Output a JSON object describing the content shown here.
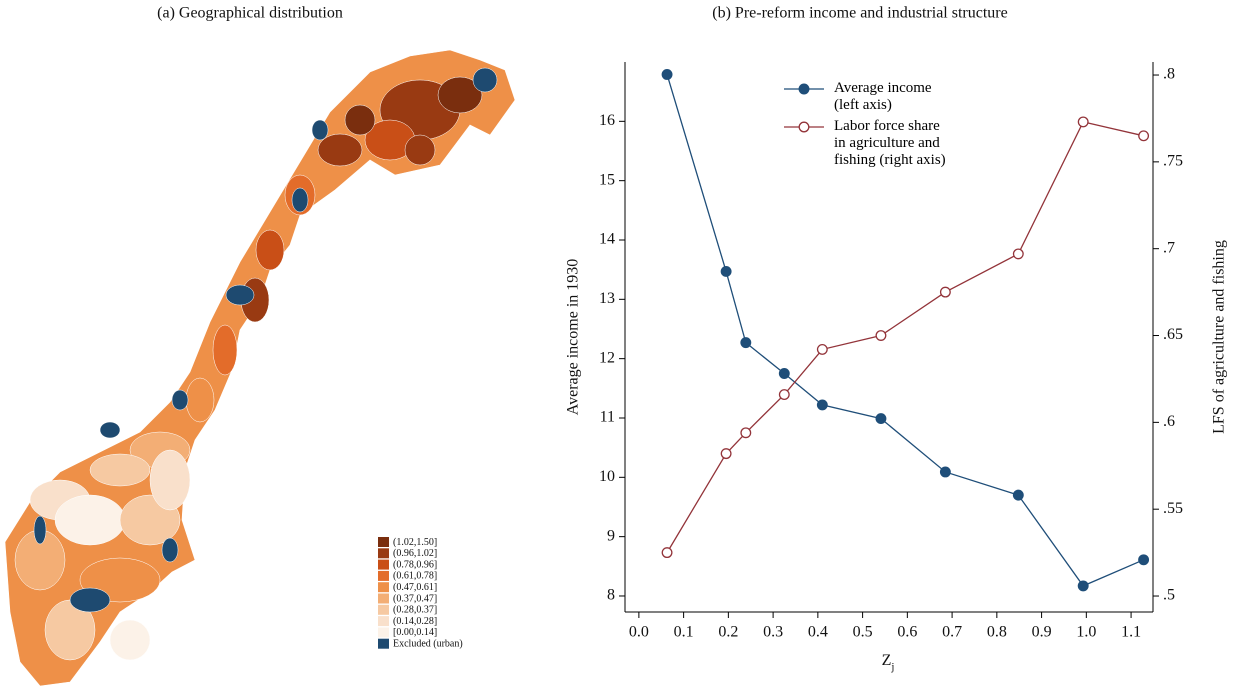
{
  "chart_data": [
    {
      "type": "choropleth",
      "title": "(a) Geographical distribution",
      "legend": [
        {
          "label": "(1.02,1.50]",
          "color": "#7a2e0e"
        },
        {
          "label": "(0.96,1.02]",
          "color": "#993a12"
        },
        {
          "label": "(0.78,0.96]",
          "color": "#c94f17"
        },
        {
          "label": "(0.61,0.78]",
          "color": "#e36c2a"
        },
        {
          "label": "(0.47,0.61]",
          "color": "#ee9048"
        },
        {
          "label": "(0.37,0.47]",
          "color": "#f3ae75"
        },
        {
          "label": "(0.28,0.37]",
          "color": "#f6c9a2"
        },
        {
          "label": "(0.14,0.28]",
          "color": "#f9e0cb"
        },
        {
          "label": "[0.00,0.14]",
          "color": "#fcf2e8"
        },
        {
          "label": "Excluded (urban)",
          "color": "#1e4a70"
        }
      ]
    },
    {
      "type": "line",
      "title": "(b) Pre-reform income and industrial structure",
      "x_label": "Z",
      "x_label_sub": "j",
      "y_label": "Average income in 1930",
      "y2_label": "LFS of agriculture and fishing",
      "x": [
        0.063,
        0.195,
        0.239,
        0.325,
        0.41,
        0.541,
        0.685,
        0.848,
        0.993,
        1.128
      ],
      "series": [
        {
          "name": "Average income\n(left axis)",
          "color": "#1f4e79",
          "marker": "filled",
          "values": [
            16.79,
            13.47,
            12.27,
            11.75,
            11.22,
            10.99,
            10.09,
            9.7,
            8.17,
            8.61
          ]
        },
        {
          "name": "Labor force share\nin agriculture and\nfishing (right axis)",
          "color": "#93343a",
          "marker": "hollow",
          "axis": "y2",
          "values": [
            0.525,
            0.582,
            0.594,
            0.616,
            0.642,
            0.65,
            0.675,
            0.697,
            0.773,
            0.765
          ]
        }
      ],
      "xlim": [
        -0.031,
        1.149
      ],
      "xticks": [
        {
          "value": 0,
          "label": "0.0"
        },
        0.1,
        0.2,
        0.3,
        0.4,
        0.5,
        0.6,
        0.7,
        0.8,
        0.9,
        {
          "value": 1,
          "label": "1.0"
        },
        1.1
      ],
      "ylim": [
        7.73,
        17.0
      ],
      "yticks": [
        8,
        9,
        10,
        11,
        12,
        13,
        14,
        15,
        16
      ],
      "y2lim": [
        0.4908,
        0.8075
      ],
      "y2ticks": [
        {
          "value": 0.5,
          "label": ".5"
        },
        {
          "value": 0.55,
          "label": ".55"
        },
        {
          "value": 0.6,
          "label": ".6"
        },
        {
          "value": 0.65,
          "label": ".65"
        },
        {
          "value": 0.7,
          "label": ".7"
        },
        {
          "value": 0.75,
          "label": ".75"
        },
        {
          "value": 0.8,
          "label": ".8"
        }
      ],
      "grid": false,
      "legend_position": "top"
    }
  ]
}
